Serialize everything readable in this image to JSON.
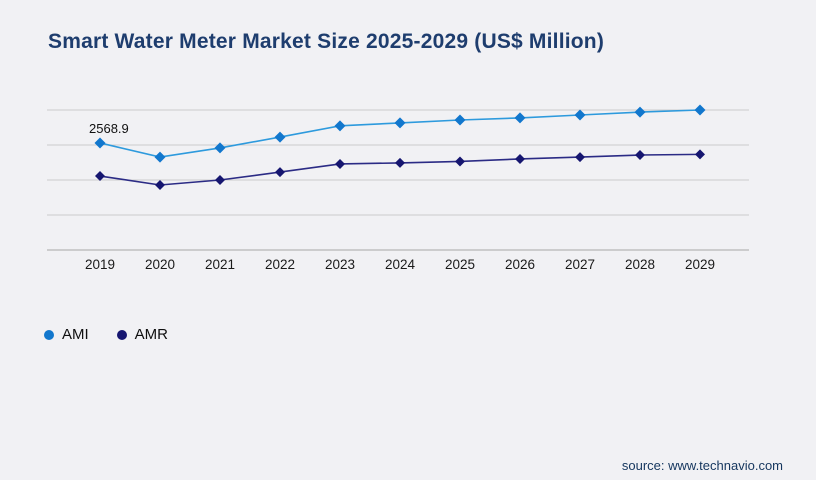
{
  "footer": {
    "source": "source: www.technavio.com"
  },
  "chart_data": {
    "type": "line",
    "title": "Smart Water Meter Market Size 2025-2029 (US$ Million)",
    "categories": [
      "2019",
      "2020",
      "2021",
      "2022",
      "2023",
      "2024",
      "2025",
      "2026",
      "2027",
      "2028",
      "2029"
    ],
    "series": [
      {
        "name": "AMI",
        "line_color": "#2d9add",
        "marker_color": "#1277cd",
        "values": [
          2568.9,
          2230,
          2450,
          2710,
          2980,
          3050,
          3120,
          3170,
          3240,
          3310,
          3360
        ]
      },
      {
        "name": "AMR",
        "line_color": "#2b2b85",
        "marker_color": "#161670",
        "values": [
          1775,
          1560,
          1680,
          1870,
          2065,
          2090,
          2125,
          2185,
          2230,
          2280,
          2295
        ]
      }
    ],
    "point_label": {
      "series": "AMI",
      "category": "2019",
      "text": "2568.9"
    },
    "ylim": [
      0,
      3360
    ],
    "gridlines": 5,
    "grid_on": true,
    "y_axis_labels_visible": false,
    "legend_position": "bottom-left",
    "marker_shape": "diamond",
    "grid_color": "#cbcbcb",
    "axis_color": "#a6a6a6",
    "tick_label_color": "#1a1a1a",
    "title_color": "#1e3d6e"
  }
}
